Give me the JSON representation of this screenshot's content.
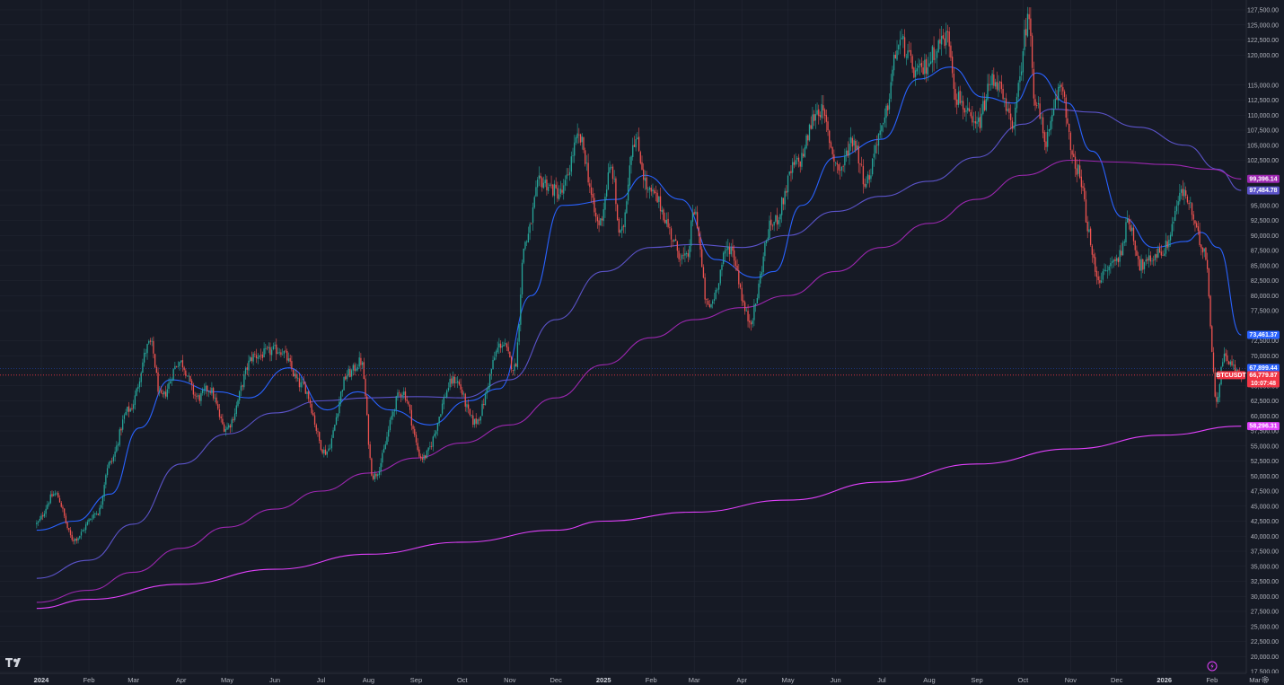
{
  "chart_data": {
    "type": "candlestick",
    "symbol": "BTCUSDT",
    "y_axis": {
      "ylim": [
        16500,
        128500
      ],
      "tick_labels": [
        "127,500.00",
        "125,000.00",
        "122,500.00",
        "120,000.00",
        "115,000.00",
        "112,500.00",
        "110,000.00",
        "107,500.00",
        "105,000.00",
        "102,500.00",
        "97,500.00",
        "95,000.00",
        "92,500.00",
        "90,000.00",
        "87,500.00",
        "85,000.00",
        "82,500.00",
        "80,000.00",
        "77,500.00",
        "72,500.00",
        "70,000.00",
        "65,000.00",
        "62,500.00",
        "60,000.00",
        "57,500.00",
        "55,000.00",
        "52,500.00",
        "50,000.00",
        "47,500.00",
        "45,000.00",
        "42,500.00",
        "40,000.00",
        "37,500.00",
        "35,000.00",
        "32,500.00",
        "30,000.00",
        "27,500.00",
        "25,000.00",
        "22,500.00",
        "20,000.00",
        "17,500.00"
      ]
    },
    "x_axis": {
      "labels": [
        {
          "text": "2024",
          "year": true
        },
        {
          "text": "Feb"
        },
        {
          "text": "Mar"
        },
        {
          "text": "Apr"
        },
        {
          "text": "May"
        },
        {
          "text": "Jun"
        },
        {
          "text": "Jul"
        },
        {
          "text": "Aug"
        },
        {
          "text": "Sep"
        },
        {
          "text": "Oct"
        },
        {
          "text": "Nov"
        },
        {
          "text": "Dec"
        },
        {
          "text": "2025",
          "year": true
        },
        {
          "text": "Feb"
        },
        {
          "text": "Mar"
        },
        {
          "text": "Apr"
        },
        {
          "text": "May"
        },
        {
          "text": "Jun"
        },
        {
          "text": "Jul"
        },
        {
          "text": "Aug"
        },
        {
          "text": "Sep"
        },
        {
          "text": "Oct"
        },
        {
          "text": "Nov"
        },
        {
          "text": "Dec"
        },
        {
          "text": "2026",
          "year": true
        },
        {
          "text": "Feb"
        },
        {
          "text": "Mar"
        }
      ]
    },
    "price_key_points": [
      [
        "2023-12-29",
        42000
      ],
      [
        "2024-01-11",
        47000
      ],
      [
        "2024-01-23",
        39500
      ],
      [
        "2024-02-08",
        44000
      ],
      [
        "2024-02-15",
        52000
      ],
      [
        "2024-02-28",
        61000
      ],
      [
        "2024-03-13",
        72000
      ],
      [
        "2024-03-20",
        63000
      ],
      [
        "2024-04-01",
        69000
      ],
      [
        "2024-04-13",
        63000
      ],
      [
        "2024-04-20",
        64500
      ],
      [
        "2024-05-01",
        58000
      ],
      [
        "2024-05-20",
        70000
      ],
      [
        "2024-06-05",
        71000
      ],
      [
        "2024-06-20",
        65000
      ],
      [
        "2024-07-05",
        54000
      ],
      [
        "2024-07-20",
        67000
      ],
      [
        "2024-07-28",
        69000
      ],
      [
        "2024-08-05",
        50000
      ],
      [
        "2024-08-24",
        64000
      ],
      [
        "2024-09-06",
        53000
      ],
      [
        "2024-09-27",
        66000
      ],
      [
        "2024-10-10",
        59000
      ],
      [
        "2024-10-28",
        72000
      ],
      [
        "2024-11-05",
        68000
      ],
      [
        "2024-11-12",
        89000
      ],
      [
        "2024-11-22",
        99000
      ],
      [
        "2024-12-05",
        97000
      ],
      [
        "2024-12-17",
        106000
      ],
      [
        "2024-12-30",
        92000
      ],
      [
        "2025-01-07",
        101000
      ],
      [
        "2025-01-13",
        90000
      ],
      [
        "2025-01-22",
        106000
      ],
      [
        "2025-02-01",
        97000
      ],
      [
        "2025-02-25",
        86000
      ],
      [
        "2025-03-02",
        94000
      ],
      [
        "2025-03-11",
        78000
      ],
      [
        "2025-03-25",
        88000
      ],
      [
        "2025-04-07",
        76000
      ],
      [
        "2025-04-22",
        92000
      ],
      [
        "2025-05-08",
        102000
      ],
      [
        "2025-05-22",
        111000
      ],
      [
        "2025-06-05",
        101000
      ],
      [
        "2025-06-13",
        106000
      ],
      [
        "2025-06-22",
        99000
      ],
      [
        "2025-07-01",
        107000
      ],
      [
        "2025-07-14",
        122000
      ],
      [
        "2025-07-25",
        117000
      ],
      [
        "2025-08-14",
        123000
      ],
      [
        "2025-08-20",
        113000
      ],
      [
        "2025-09-01",
        108000
      ],
      [
        "2025-09-13",
        116000
      ],
      [
        "2025-09-25",
        109000
      ],
      [
        "2025-10-06",
        126000
      ],
      [
        "2025-10-10",
        112000
      ],
      [
        "2025-10-17",
        106000
      ],
      [
        "2025-10-27",
        115000
      ],
      [
        "2025-11-04",
        102000
      ],
      [
        "2025-11-21",
        83000
      ],
      [
        "2025-12-02",
        86000
      ],
      [
        "2025-12-10",
        92000
      ],
      [
        "2025-12-18",
        85000
      ],
      [
        "2026-01-01",
        87500
      ],
      [
        "2026-01-14",
        97000
      ],
      [
        "2026-01-28",
        88000
      ],
      [
        "2026-02-05",
        63000
      ],
      [
        "2026-02-10",
        70000
      ],
      [
        "2026-02-20",
        66800
      ]
    ],
    "ema_series": [
      {
        "color": "#2962ff",
        "end_label": "73,461.37",
        "end_value": 73461.37,
        "points": [
          [
            "2023-12-29",
            41000
          ],
          [
            "2024-01-23",
            42500
          ],
          [
            "2024-02-15",
            47000
          ],
          [
            "2024-03-05",
            58000
          ],
          [
            "2024-03-25",
            66000
          ],
          [
            "2024-04-25",
            64000
          ],
          [
            "2024-05-15",
            63000
          ],
          [
            "2024-06-10",
            68000
          ],
          [
            "2024-07-05",
            61000
          ],
          [
            "2024-07-25",
            64000
          ],
          [
            "2024-08-15",
            61000
          ],
          [
            "2024-09-10",
            58500
          ],
          [
            "2024-10-05",
            62500
          ],
          [
            "2024-10-25",
            64500
          ],
          [
            "2024-11-15",
            80000
          ],
          [
            "2024-12-05",
            95000
          ],
          [
            "2025-01-10",
            96000
          ],
          [
            "2025-01-28",
            100000
          ],
          [
            "2025-02-20",
            96000
          ],
          [
            "2025-03-15",
            86000
          ],
          [
            "2025-04-10",
            83000
          ],
          [
            "2025-04-22",
            84000
          ],
          [
            "2025-05-10",
            95000
          ],
          [
            "2025-06-01",
            103000
          ],
          [
            "2025-07-01",
            106000
          ],
          [
            "2025-07-25",
            116000
          ],
          [
            "2025-08-15",
            118000
          ],
          [
            "2025-09-05",
            113000
          ],
          [
            "2025-09-25",
            112000
          ],
          [
            "2025-10-10",
            117000
          ],
          [
            "2025-10-30",
            112000
          ],
          [
            "2025-11-15",
            104000
          ],
          [
            "2025-12-05",
            93000
          ],
          [
            "2025-12-25",
            88000
          ],
          [
            "2026-01-15",
            89000
          ],
          [
            "2026-01-25",
            90500
          ],
          [
            "2026-02-05",
            88000
          ],
          [
            "2026-02-20",
            73461.37
          ]
        ]
      },
      {
        "color": "#5b53c9",
        "end_label": "97,484.78",
        "end_value": 97484.78,
        "points": [
          [
            "2023-12-29",
            33000
          ],
          [
            "2024-02-01",
            36000
          ],
          [
            "2024-03-01",
            42000
          ],
          [
            "2024-04-01",
            52000
          ],
          [
            "2024-05-01",
            57000
          ],
          [
            "2024-06-01",
            60500
          ],
          [
            "2024-07-01",
            62500
          ],
          [
            "2024-08-01",
            63000
          ],
          [
            "2024-09-01",
            63200
          ],
          [
            "2024-10-01",
            63000
          ],
          [
            "2024-11-01",
            66000
          ],
          [
            "2024-12-01",
            76000
          ],
          [
            "2025-01-01",
            84000
          ],
          [
            "2025-02-01",
            88000
          ],
          [
            "2025-03-01",
            88500
          ],
          [
            "2025-04-01",
            88000
          ],
          [
            "2025-05-01",
            90000
          ],
          [
            "2025-06-01",
            94000
          ],
          [
            "2025-07-01",
            96500
          ],
          [
            "2025-08-01",
            99000
          ],
          [
            "2025-09-01",
            103000
          ],
          [
            "2025-10-01",
            108500
          ],
          [
            "2025-10-20",
            111000
          ],
          [
            "2025-11-15",
            110500
          ],
          [
            "2025-12-15",
            108000
          ],
          [
            "2026-01-15",
            105000
          ],
          [
            "2026-02-05",
            101000
          ],
          [
            "2026-02-20",
            97484.78
          ]
        ]
      },
      {
        "color": "#9c27b0",
        "end_label": "99,396.14",
        "end_value": 99396.14,
        "points": [
          [
            "2023-12-29",
            29000
          ],
          [
            "2024-02-01",
            31000
          ],
          [
            "2024-03-01",
            34000
          ],
          [
            "2024-04-01",
            38000
          ],
          [
            "2024-05-01",
            41500
          ],
          [
            "2024-06-01",
            44500
          ],
          [
            "2024-07-01",
            47500
          ],
          [
            "2024-08-01",
            50500
          ],
          [
            "2024-09-01",
            53000
          ],
          [
            "2024-10-01",
            55500
          ],
          [
            "2024-11-01",
            58500
          ],
          [
            "2024-12-01",
            63000
          ],
          [
            "2025-01-01",
            68500
          ],
          [
            "2025-02-01",
            73000
          ],
          [
            "2025-03-01",
            76000
          ],
          [
            "2025-04-01",
            78000
          ],
          [
            "2025-05-01",
            80000
          ],
          [
            "2025-06-01",
            84000
          ],
          [
            "2025-07-01",
            88000
          ],
          [
            "2025-08-01",
            92000
          ],
          [
            "2025-09-01",
            96000
          ],
          [
            "2025-10-01",
            100000
          ],
          [
            "2025-11-01",
            102500
          ],
          [
            "2025-12-01",
            102200
          ],
          [
            "2026-01-01",
            101800
          ],
          [
            "2026-02-01",
            101000
          ],
          [
            "2026-02-20",
            99396.14
          ]
        ]
      },
      {
        "color": "#e040fb",
        "end_label": "58,296.31",
        "end_value": 58296.31,
        "points": [
          [
            "2023-12-29",
            28000
          ],
          [
            "2024-02-01",
            29500
          ],
          [
            "2024-04-01",
            32000
          ],
          [
            "2024-06-01",
            34500
          ],
          [
            "2024-08-01",
            37000
          ],
          [
            "2024-10-01",
            39000
          ],
          [
            "2024-12-01",
            41000
          ],
          [
            "2025-01-01",
            42500
          ],
          [
            "2025-03-01",
            44000
          ],
          [
            "2025-05-01",
            46000
          ],
          [
            "2025-07-01",
            49000
          ],
          [
            "2025-09-01",
            52000
          ],
          [
            "2025-11-01",
            54500
          ],
          [
            "2026-01-01",
            56800
          ],
          [
            "2026-02-20",
            58296.31
          ]
        ]
      }
    ],
    "price_labels": {
      "symbol_tag": "BTCUSDT",
      "last_price": "66,779.87",
      "last_price_value": 66779.87,
      "countdown": "10:07:48",
      "prev_close": "67,899.44",
      "prev_close_value": 67899.44
    },
    "colors": {
      "background": "#161a25",
      "grid": "#232733",
      "up": "#26a69a",
      "down": "#ef5350",
      "axis_text": "#b2b5be",
      "last_price_tag": "#f23645",
      "prev_close_tag": "#2962ff"
    }
  },
  "ui": {
    "logo_icon": "tradingview-logo",
    "alert_icon": "lightning-icon",
    "settings_icon": "gear-icon"
  }
}
